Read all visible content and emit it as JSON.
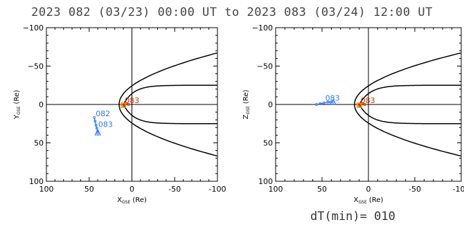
{
  "title": "2023 082 (03/23) 00:00 UT to 2023 083 (03/24) 12:00 UT",
  "footer_label": "dT(min)= 010",
  "colors": {
    "axis": "#000000",
    "boundary": "#000000",
    "spacecraft_track": "#3377ff",
    "mms_track": "#cc3300",
    "mms_box": "#ff8800"
  },
  "chart_data": [
    {
      "type": "scatter",
      "panel": "left",
      "xlabel_main": "X",
      "xlabel_sub": "GSE",
      "xlabel_unit": "(Re)",
      "ylabel_main": "Y",
      "ylabel_sub": "GSE",
      "ylabel_unit": "(Re)",
      "xlim": [
        100,
        -100
      ],
      "ylim": [
        100,
        -100
      ],
      "xticks": [
        100,
        50,
        0,
        -50,
        -100
      ],
      "yticks": [
        -100,
        -50,
        0,
        50,
        100
      ],
      "grid": false,
      "series": [
        {
          "x": [
            44,
            43,
            42,
            41,
            40,
            40
          ],
          "y": [
            17,
            22,
            27,
            31,
            35,
            37
          ],
          "labels": [
            "082",
            "083"
          ],
          "label_points": [
            [
              44,
              17
            ],
            [
              41,
              31
            ]
          ]
        },
        {
          "x": [
            10,
            8,
            6,
            4
          ],
          "y": [
            1,
            0,
            -1,
            0
          ],
          "labels": [
            "083"
          ],
          "label_points": [
            [
              10,
              0
            ]
          ]
        }
      ]
    },
    {
      "type": "scatter",
      "panel": "right",
      "xlabel_main": "X",
      "xlabel_sub": "GSE",
      "xlabel_unit": "(Re)",
      "ylabel_main": "Z",
      "ylabel_sub": "GSE",
      "ylabel_unit": "(Re)",
      "xlim": [
        100,
        -100
      ],
      "ylim": [
        100,
        -100
      ],
      "xticks": [
        100,
        50,
        0,
        -50,
        -100
      ],
      "yticks": [
        -100,
        -50,
        0,
        50,
        100
      ],
      "grid": false,
      "series": [
        {
          "x": [
            56,
            52,
            48,
            44,
            41,
            38
          ],
          "y": [
            0,
            -1,
            -2,
            -3,
            -3,
            -3
          ],
          "labels": [
            "083"
          ],
          "label_points": [
            [
              48,
              -3
            ]
          ]
        },
        {
          "x": [
            10,
            8,
            6,
            4
          ],
          "y": [
            1,
            0,
            -1,
            0
          ],
          "labels": [
            "083"
          ],
          "label_points": [
            [
              10,
              0
            ]
          ]
        }
      ]
    }
  ]
}
